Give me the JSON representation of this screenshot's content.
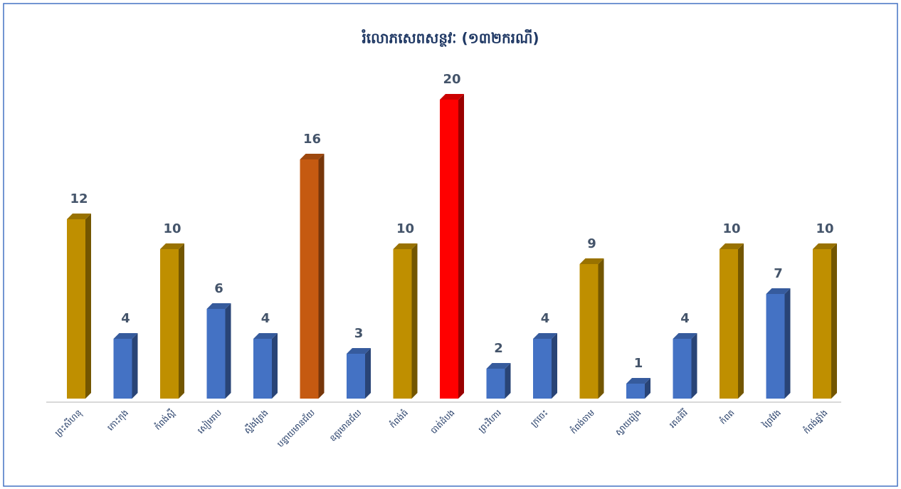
{
  "chart_data": {
    "type": "bar3d",
    "title": "រំលោភសេពសន្ថវៈ (១៣២ករណី)",
    "categories": [
      "ព្រះសីហនុ",
      "កោះកុង",
      "កំពង់ស្ពឺ",
      "សៀមរាប",
      "ស្ទឹងត្រែង",
      "បន្ទាយមានជ័យ",
      "ឧត្តរមានជ័យ",
      "កំពង់ធំ",
      "បាត់ដំបង",
      "ព្រះវិហារ",
      "ក្រចេះ",
      "កំពង់ចាម",
      "ស្វាយរៀង",
      "រតនគិរី",
      "កំពត",
      "ព្រៃវែង",
      "កំពង់ឆ្នាំង"
    ],
    "values": [
      12,
      4,
      10,
      6,
      4,
      16,
      3,
      10,
      20,
      2,
      4,
      9,
      1,
      4,
      10,
      7,
      10
    ],
    "colors": [
      "#bf8f00",
      "#4472c4",
      "#bf8f00",
      "#4472c4",
      "#4472c4",
      "#c55a11",
      "#4472c4",
      "#bf8f00",
      "#ff0000",
      "#4472c4",
      "#4472c4",
      "#bf8f00",
      "#4472c4",
      "#4472c4",
      "#bf8f00",
      "#4472c4",
      "#bf8f00"
    ],
    "ylim": [
      0,
      20
    ]
  }
}
